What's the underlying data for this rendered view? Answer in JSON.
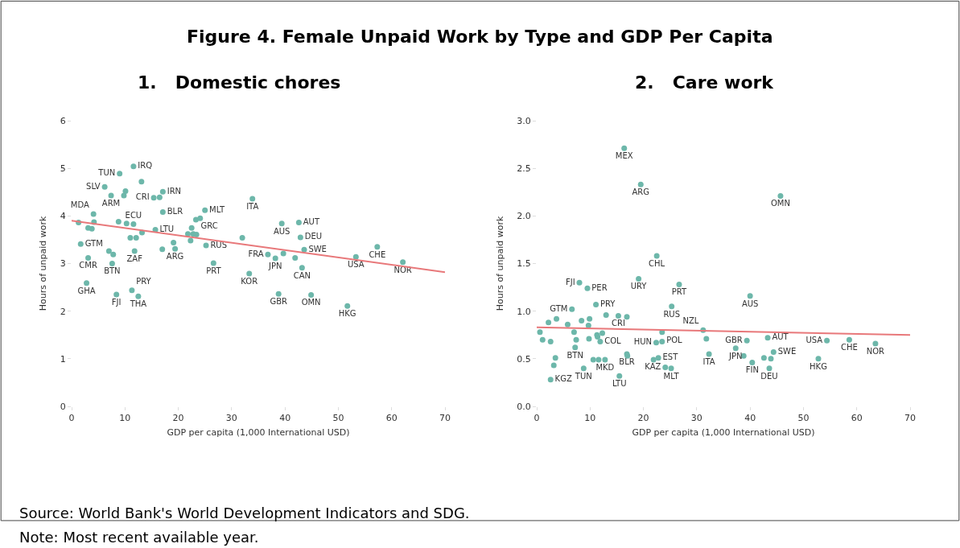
{
  "chart_data": [
    {
      "type": "scatter",
      "title": "1.   Domestic chores",
      "xlabel": "GDP per capita (1,000 International USD)",
      "ylabel": "Hours of unpaid work",
      "annotations": [
        "Figure 4. Female Unpaid Work by Type and GDP Per Capita",
        "Source: World Bank's World Development Indicators and SDG.",
        "Note: Most recent available year."
      ],
      "xlim": [
        0,
        70
      ],
      "ylim": [
        0,
        6
      ],
      "xticks": [
        0,
        10,
        20,
        30,
        40,
        50,
        60,
        70
      ],
      "yticks": [
        0,
        1,
        2,
        3,
        4,
        5,
        6
      ],
      "marker": "circle",
      "series": [
        {
          "color": "#6db7aa",
          "x": [
            1.3,
            1.7,
            3.1,
            3.8,
            4.1,
            4.2,
            3.1,
            2.8,
            6.2,
            7.4,
            9.0,
            7.0,
            7.8,
            7.6,
            8.4,
            8.8,
            9.8,
            10.1,
            11.6,
            13.1,
            10.3,
            11.6,
            11.0,
            12.1,
            13.2,
            11.8,
            11.3,
            12.5,
            15.4,
            16.5,
            17.1,
            17.1,
            15.7,
            17.0,
            19.1,
            19.4,
            21.8,
            22.5,
            22.3,
            22.8,
            23.4,
            23.3,
            24.1,
            25.0,
            25.2,
            26.6,
            32.0,
            33.9,
            33.3,
            36.8,
            38.2,
            39.7,
            39.4,
            38.8,
            41.9,
            42.6,
            42.9,
            43.6,
            43.2,
            44.9,
            51.7,
            53.3,
            57.3,
            62.1
          ],
          "values": [
            3.86,
            3.41,
            3.75,
            3.73,
            4.04,
            3.87,
            3.12,
            2.59,
            4.61,
            4.43,
            4.89,
            3.26,
            3.19,
            3.0,
            2.35,
            3.88,
            4.43,
            4.52,
            5.04,
            4.72,
            3.84,
            3.83,
            3.54,
            3.54,
            3.65,
            3.26,
            2.44,
            2.31,
            4.38,
            4.39,
            4.51,
            4.08,
            3.71,
            3.3,
            3.44,
            3.31,
            3.62,
            3.75,
            3.48,
            3.62,
            3.61,
            3.92,
            3.95,
            4.12,
            3.38,
            3.01,
            3.54,
            4.36,
            2.79,
            3.19,
            3.11,
            3.21,
            3.84,
            2.36,
            3.12,
            3.86,
            3.55,
            3.29,
            2.91,
            2.34,
            2.11,
            3.14,
            3.35,
            3.03
          ],
          "value_labels": [
            null,
            "GTM",
            null,
            null,
            "MDA",
            null,
            "CMR",
            "GHA",
            "SLV",
            "ARM",
            "TUN",
            null,
            null,
            "BTN",
            "FJI",
            null,
            null,
            null,
            "IRQ",
            null,
            null,
            "ECU",
            null,
            null,
            null,
            "ZAF",
            "PRY",
            "THA",
            "CRI",
            null,
            "IRN",
            "BLR",
            "LTU",
            null,
            null,
            "ARG",
            null,
            null,
            null,
            null,
            "GRC",
            null,
            null,
            "MLT",
            "RUS",
            "PRT",
            null,
            "ITA",
            "KOR",
            "FRA",
            "JPN",
            null,
            "AUS",
            "GBR",
            null,
            "AUT",
            "DEU",
            "SWE",
            "CAN",
            "OMN",
            "HKG",
            "USA",
            "CHE",
            "NOR"
          ]
        },
        {
          "type": "line",
          "marker": "none",
          "color": "#e8787a",
          "x": [
            0,
            70
          ],
          "values": [
            3.9,
            2.82
          ]
        }
      ]
    },
    {
      "type": "scatter",
      "title": "2.   Care work",
      "xlabel": "GDP per capita (1,000 International USD)",
      "ylabel": "Hours of unpaid work",
      "xlim": [
        0,
        70
      ],
      "ylim": [
        0,
        3
      ],
      "xticks": [
        0,
        10,
        20,
        30,
        40,
        50,
        60,
        70
      ],
      "yticks": [
        {
          "value": 0,
          "label": "0.0"
        },
        {
          "value": 0.5,
          "label": "0.5"
        },
        {
          "value": 1,
          "label": "1.0"
        },
        {
          "value": 1.5,
          "label": "1.5"
        },
        {
          "value": 2,
          "label": "2.0"
        },
        {
          "value": 2.5,
          "label": "2.5"
        },
        {
          "value": 3,
          "label": "3.0"
        }
      ],
      "marker": "circle",
      "series": [
        {
          "color": "#6db7aa",
          "x": [
            0.6,
            1.1,
            2.6,
            2.2,
            3.7,
            6.6,
            5.8,
            7.0,
            7.4,
            7.2,
            3.5,
            3.2,
            2.6,
            8.0,
            8.4,
            9.5,
            9.9,
            9.7,
            9.8,
            8.8,
            10.6,
            11.6,
            12.8,
            11.1,
            11.3,
            11.4,
            12.3,
            11.9,
            13.0,
            15.3,
            16.9,
            16.9,
            17.0,
            15.5,
            16.4,
            19.5,
            19.1,
            22.5,
            26.7,
            25.3,
            22.4,
            23.5,
            23.5,
            21.9,
            22.8,
            24.1,
            25.2,
            31.2,
            31.8,
            32.3,
            37.3,
            38.8,
            39.4,
            40.4,
            40.0,
            42.6,
            43.3,
            43.9,
            43.6,
            44.4,
            45.7,
            52.8,
            54.4,
            58.6,
            63.5
          ],
          "values": [
            0.78,
            0.7,
            0.68,
            0.88,
            0.92,
            1.02,
            0.86,
            0.78,
            0.7,
            0.62,
            0.51,
            0.43,
            0.28,
            1.3,
            0.9,
            1.24,
            0.92,
            0.85,
            0.71,
            0.4,
            0.49,
            0.49,
            0.49,
            1.07,
            0.75,
            0.73,
            0.77,
            0.68,
            0.96,
            0.95,
            0.94,
            0.55,
            0.53,
            0.32,
            2.71,
            2.33,
            1.34,
            1.58,
            1.28,
            1.05,
            0.67,
            0.68,
            0.78,
            0.49,
            0.51,
            0.41,
            0.4,
            0.8,
            0.71,
            0.55,
            0.61,
            0.53,
            0.69,
            0.46,
            1.16,
            0.51,
            0.72,
            0.5,
            0.4,
            0.57,
            2.21,
            0.5,
            0.69,
            0.7,
            0.66
          ],
          "value_labels": [
            null,
            null,
            null,
            null,
            null,
            "GTM",
            null,
            null,
            null,
            "BTN",
            null,
            null,
            "KGZ",
            "FJI",
            null,
            "PER",
            null,
            null,
            null,
            "TUN",
            null,
            null,
            "MKD",
            "PRY",
            null,
            null,
            null,
            "COL",
            null,
            "CRI",
            null,
            "BLR",
            null,
            "LTU",
            "MEX",
            "ARG",
            "URY",
            "CHL",
            "PRT",
            "RUS",
            "HUN",
            null,
            "POL",
            null,
            "EST",
            "KAZ",
            "MLT",
            "NZL",
            null,
            "ITA",
            "JPN",
            null,
            "GBR",
            "FIN",
            "AUS",
            null,
            "AUT",
            null,
            "DEU",
            "SWE",
            "OMN",
            "HKG",
            "USA",
            "CHE",
            "NOR"
          ]
        },
        {
          "type": "line",
          "marker": "none",
          "color": "#e8787a",
          "x": [
            0,
            70
          ],
          "values": [
            0.83,
            0.75
          ]
        }
      ]
    }
  ]
}
